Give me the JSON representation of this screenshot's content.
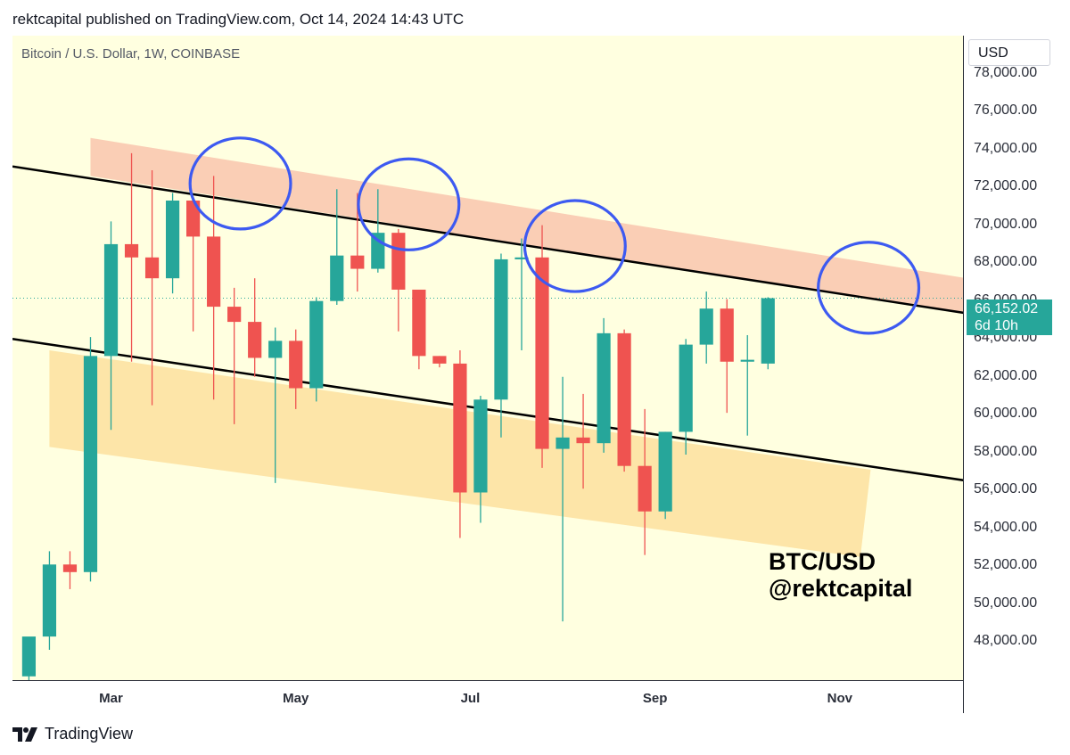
{
  "header": {
    "published": "rektcapital published on TradingView.com, Oct 14, 2024 14:43 UTC"
  },
  "symbol": {
    "title": "Bitcoin / U.S. Dollar, 1W, COINBASE"
  },
  "currency": "USD",
  "price_label": {
    "value": "66,152.02",
    "countdown": "6d 10h"
  },
  "watermark": {
    "line1": "BTC/USD",
    "line2": "@rektcapital"
  },
  "footer": {
    "brand": "TradingView"
  },
  "colors": {
    "up": "#26a69a",
    "down": "#ef5350",
    "background": "#ffffe0",
    "resistance": "#f9c9b0",
    "support": "#fde2a2",
    "circle": "#3d5af1",
    "line": "#000000"
  },
  "chart_data": {
    "type": "candlestick",
    "title": "Bitcoin / U.S. Dollar, 1W, COINBASE",
    "ylim": [
      46000,
      80000
    ],
    "yticks": [
      "78,000.00",
      "76,000.00",
      "74,000.00",
      "72,000.00",
      "70,000.00",
      "68,000.00",
      "66,000.00",
      "64,000.00",
      "62,000.00",
      "60,000.00",
      "58,000.00",
      "56,000.00",
      "54,000.00",
      "52,000.00",
      "50,000.00",
      "48,000.00"
    ],
    "ytick_values": [
      78000,
      76000,
      74000,
      72000,
      70000,
      68000,
      66000,
      64000,
      62000,
      60000,
      58000,
      56000,
      54000,
      52000,
      50000,
      48000
    ],
    "xlim": [
      -0.8,
      45.5
    ],
    "xticks": [
      {
        "label": "Mar",
        "x": 4.0
      },
      {
        "label": "May",
        "x": 13.0
      },
      {
        "label": "Jul",
        "x": 21.5
      },
      {
        "label": "Sep",
        "x": 30.5
      },
      {
        "label": "Nov",
        "x": 39.5
      }
    ],
    "candles": [
      {
        "o": 46200,
        "h": 48100,
        "l": 45500,
        "c": 48300
      },
      {
        "o": 48300,
        "h": 52800,
        "l": 47600,
        "c": 52100
      },
      {
        "o": 52100,
        "h": 52800,
        "l": 50800,
        "c": 51700
      },
      {
        "o": 51700,
        "h": 64100,
        "l": 51200,
        "c": 63100
      },
      {
        "o": 63100,
        "h": 70200,
        "l": 59200,
        "c": 69000
      },
      {
        "o": 69000,
        "h": 73800,
        "l": 62800,
        "c": 68300
      },
      {
        "o": 68300,
        "h": 72900,
        "l": 60500,
        "c": 67200
      },
      {
        "o": 67200,
        "h": 71700,
        "l": 66400,
        "c": 71300
      },
      {
        "o": 71300,
        "h": 71400,
        "l": 64400,
        "c": 69400
      },
      {
        "o": 69400,
        "h": 72600,
        "l": 60800,
        "c": 65700
      },
      {
        "o": 65700,
        "h": 66700,
        "l": 59500,
        "c": 64900
      },
      {
        "o": 64900,
        "h": 67200,
        "l": 62000,
        "c": 63000
      },
      {
        "o": 63000,
        "h": 64600,
        "l": 56400,
        "c": 63900
      },
      {
        "o": 63900,
        "h": 64500,
        "l": 60300,
        "c": 61400
      },
      {
        "o": 61400,
        "h": 66200,
        "l": 60700,
        "c": 66000
      },
      {
        "o": 66000,
        "h": 71900,
        "l": 65800,
        "c": 68400
      },
      {
        "o": 68400,
        "h": 71700,
        "l": 66500,
        "c": 67700
      },
      {
        "o": 67700,
        "h": 71900,
        "l": 67500,
        "c": 69600
      },
      {
        "o": 69600,
        "h": 69800,
        "l": 64400,
        "c": 66600
      },
      {
        "o": 66600,
        "h": 66400,
        "l": 62400,
        "c": 63100
      },
      {
        "o": 63100,
        "h": 63100,
        "l": 62500,
        "c": 62700
      },
      {
        "o": 62700,
        "h": 63400,
        "l": 53500,
        "c": 55900
      },
      {
        "o": 55900,
        "h": 61000,
        "l": 54300,
        "c": 60800
      },
      {
        "o": 60800,
        "h": 68500,
        "l": 58800,
        "c": 68200
      },
      {
        "o": 68200,
        "h": 69300,
        "l": 63400,
        "c": 68300
      },
      {
        "o": 68300,
        "h": 70000,
        "l": 57200,
        "c": 58200
      },
      {
        "o": 58200,
        "h": 62000,
        "l": 49100,
        "c": 58800
      },
      {
        "o": 58800,
        "h": 61100,
        "l": 56100,
        "c": 58500
      },
      {
        "o": 58500,
        "h": 65100,
        "l": 58000,
        "c": 64300
      },
      {
        "o": 64300,
        "h": 64500,
        "l": 57000,
        "c": 57300
      },
      {
        "o": 57300,
        "h": 60300,
        "l": 52600,
        "c": 54900
      },
      {
        "o": 54900,
        "h": 59100,
        "l": 54500,
        "c": 59100
      },
      {
        "o": 59100,
        "h": 64000,
        "l": 57900,
        "c": 63700
      },
      {
        "o": 63700,
        "h": 66500,
        "l": 62700,
        "c": 65600
      },
      {
        "o": 65600,
        "h": 66100,
        "l": 60100,
        "c": 62800
      },
      {
        "o": 62800,
        "h": 64200,
        "l": 58900,
        "c": 62900
      },
      {
        "o": 62700,
        "h": 66200,
        "l": 62400,
        "c": 66150
      }
    ],
    "current_price": 66152.02,
    "trendlines": [
      {
        "name": "upper-channel-line",
        "x1": -0.8,
        "y1": 73100,
        "x2": 46.0,
        "y2": 65300
      },
      {
        "name": "lower-channel-line",
        "x1": -0.8,
        "y1": 64000,
        "x2": 45.8,
        "y2": 56500
      }
    ],
    "zones": [
      {
        "name": "resistance-zone",
        "corners": [
          [
            3.0,
            74600
          ],
          [
            48.0,
            66800
          ],
          [
            48.0,
            64900
          ],
          [
            3.0,
            72600
          ]
        ]
      },
      {
        "name": "support-zone",
        "corners": [
          [
            1.0,
            63400
          ],
          [
            41.0,
            57100
          ],
          [
            40.5,
            52500
          ],
          [
            1.0,
            58300
          ]
        ]
      }
    ],
    "circles": [
      {
        "x": 10.3,
        "y": 72200,
        "rx": 2.45,
        "ry": 2400
      },
      {
        "x": 18.5,
        "y": 71100,
        "rx": 2.45,
        "ry": 2400
      },
      {
        "x": 26.6,
        "y": 68900,
        "rx": 2.45,
        "ry": 2400
      },
      {
        "x": 40.9,
        "y": 66700,
        "rx": 2.45,
        "ry": 2400
      }
    ]
  }
}
